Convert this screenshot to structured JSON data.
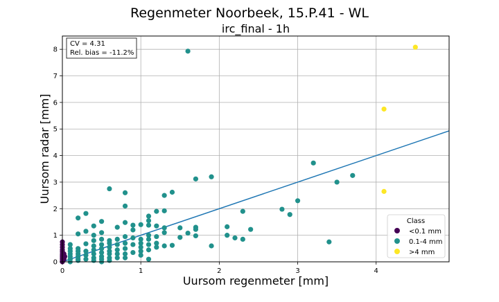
{
  "chart_data": {
    "type": "scatter",
    "title": "Regenmeter Noorbeek, 15.P.41 - WL",
    "subtitle": "irc_final - 1h",
    "xlabel": "Uursom regenmeter [mm]",
    "ylabel": "Uursom radar [mm]",
    "xlim": [
      0,
      4.93
    ],
    "ylim": [
      0,
      8.5
    ],
    "xticks": [
      "0",
      "1",
      "2",
      "3",
      "4"
    ],
    "yticks": [
      "0",
      "1",
      "2",
      "3",
      "4",
      "5",
      "6",
      "7",
      "8"
    ],
    "grid": true,
    "annotation_lines": [
      "CV = 4.31",
      "Rel. bias = -11.2%"
    ],
    "legend": {
      "title": "Class",
      "position": "lower-right",
      "entries": [
        {
          "label": "<0.1 mm",
          "color": "#440154"
        },
        {
          "label": "0.1-4 mm",
          "color": "#21918c"
        },
        {
          "label": ">4 mm",
          "color": "#fde725"
        }
      ]
    },
    "regression_line": {
      "color": "#1f77b4",
      "points": [
        [
          0,
          0
        ],
        [
          4.93,
          4.93
        ]
      ]
    },
    "series": [
      {
        "name": "<0.1 mm",
        "color": "#440154",
        "points": [
          [
            0,
            0.0
          ],
          [
            0,
            0.05
          ],
          [
            0,
            0.1
          ],
          [
            0,
            0.15
          ],
          [
            0,
            0.2
          ],
          [
            0,
            0.25
          ],
          [
            0,
            0.3
          ],
          [
            0,
            0.38
          ],
          [
            0,
            0.45
          ],
          [
            0,
            0.55
          ],
          [
            0,
            0.65
          ],
          [
            0,
            0.75
          ],
          [
            0.02,
            0.1
          ],
          [
            0.02,
            0.3
          ],
          [
            0.03,
            0.2
          ]
        ]
      },
      {
        "name": "0.1-4 mm",
        "color": "#21918c",
        "points": [
          [
            0.1,
            0.65
          ],
          [
            0.1,
            0.5
          ],
          [
            0.1,
            0.4
          ],
          [
            0.1,
            0.3
          ],
          [
            0.1,
            0.2
          ],
          [
            0.1,
            0.1
          ],
          [
            0.1,
            0.0
          ],
          [
            0.2,
            1.65
          ],
          [
            0.2,
            1.05
          ],
          [
            0.2,
            0.5
          ],
          [
            0.2,
            0.4
          ],
          [
            0.2,
            0.3
          ],
          [
            0.2,
            0.2
          ],
          [
            0.2,
            0.1
          ],
          [
            0.2,
            0.05
          ],
          [
            0.3,
            1.82
          ],
          [
            0.3,
            1.15
          ],
          [
            0.3,
            0.68
          ],
          [
            0.3,
            0.4
          ],
          [
            0.3,
            0.25
          ],
          [
            0.3,
            0.1
          ],
          [
            0.4,
            1.35
          ],
          [
            0.4,
            1.0
          ],
          [
            0.4,
            0.8
          ],
          [
            0.4,
            0.6
          ],
          [
            0.4,
            0.45
          ],
          [
            0.4,
            0.3
          ],
          [
            0.4,
            0.15
          ],
          [
            0.4,
            0.05
          ],
          [
            0.5,
            1.52
          ],
          [
            0.5,
            1.1
          ],
          [
            0.5,
            0.85
          ],
          [
            0.5,
            0.65
          ],
          [
            0.5,
            0.5
          ],
          [
            0.5,
            0.35
          ],
          [
            0.5,
            0.2
          ],
          [
            0.5,
            0.1
          ],
          [
            0.5,
            0.0
          ],
          [
            0.6,
            2.75
          ],
          [
            0.6,
            0.8
          ],
          [
            0.6,
            0.7
          ],
          [
            0.6,
            0.55
          ],
          [
            0.6,
            0.4
          ],
          [
            0.6,
            0.3
          ],
          [
            0.6,
            0.15
          ],
          [
            0.6,
            0.05
          ],
          [
            0.7,
            1.3
          ],
          [
            0.7,
            0.85
          ],
          [
            0.7,
            0.65
          ],
          [
            0.7,
            0.45
          ],
          [
            0.7,
            0.3
          ],
          [
            0.7,
            0.15
          ],
          [
            0.8,
            2.6
          ],
          [
            0.8,
            2.1
          ],
          [
            0.8,
            1.48
          ],
          [
            0.8,
            0.95
          ],
          [
            0.8,
            0.7
          ],
          [
            0.8,
            0.5
          ],
          [
            0.8,
            0.3
          ],
          [
            0.8,
            0.15
          ],
          [
            0.9,
            1.38
          ],
          [
            0.9,
            1.2
          ],
          [
            0.9,
            0.9
          ],
          [
            0.9,
            0.65
          ],
          [
            0.9,
            0.35
          ],
          [
            1.0,
            1.4
          ],
          [
            1.0,
            0.85
          ],
          [
            1.0,
            0.7
          ],
          [
            1.0,
            0.55
          ],
          [
            1.0,
            0.4
          ],
          [
            1.0,
            0.25
          ],
          [
            1.1,
            1.72
          ],
          [
            1.1,
            1.55
          ],
          [
            1.1,
            1.38
          ],
          [
            1.1,
            1.0
          ],
          [
            1.1,
            0.85
          ],
          [
            1.1,
            0.65
          ],
          [
            1.1,
            0.45
          ],
          [
            1.1,
            0.1
          ],
          [
            1.2,
            1.9
          ],
          [
            1.2,
            1.35
          ],
          [
            1.2,
            0.95
          ],
          [
            1.2,
            0.7
          ],
          [
            1.2,
            0.55
          ],
          [
            1.3,
            2.5
          ],
          [
            1.3,
            1.92
          ],
          [
            1.3,
            1.28
          ],
          [
            1.3,
            1.1
          ],
          [
            1.3,
            0.6
          ],
          [
            1.4,
            2.62
          ],
          [
            1.4,
            0.62
          ],
          [
            1.5,
            1.28
          ],
          [
            1.5,
            0.92
          ],
          [
            1.6,
            7.93
          ],
          [
            1.6,
            1.08
          ],
          [
            1.7,
            3.12
          ],
          [
            1.7,
            1.3
          ],
          [
            1.7,
            1.22
          ],
          [
            1.7,
            0.98
          ],
          [
            1.9,
            3.2
          ],
          [
            1.9,
            0.6
          ],
          [
            2.1,
            1.32
          ],
          [
            2.1,
            1.0
          ],
          [
            2.2,
            0.9
          ],
          [
            2.3,
            1.9
          ],
          [
            2.3,
            0.85
          ],
          [
            2.4,
            1.22
          ],
          [
            2.8,
            1.98
          ],
          [
            2.9,
            1.78
          ],
          [
            3.0,
            2.3
          ],
          [
            3.2,
            3.72
          ],
          [
            3.4,
            0.75
          ],
          [
            3.5,
            3.0
          ],
          [
            3.7,
            3.25
          ]
        ]
      },
      {
        "name": ">4 mm",
        "color": "#fde725",
        "points": [
          [
            4.5,
            8.08
          ],
          [
            4.1,
            5.75
          ],
          [
            4.1,
            2.65
          ]
        ]
      }
    ]
  }
}
